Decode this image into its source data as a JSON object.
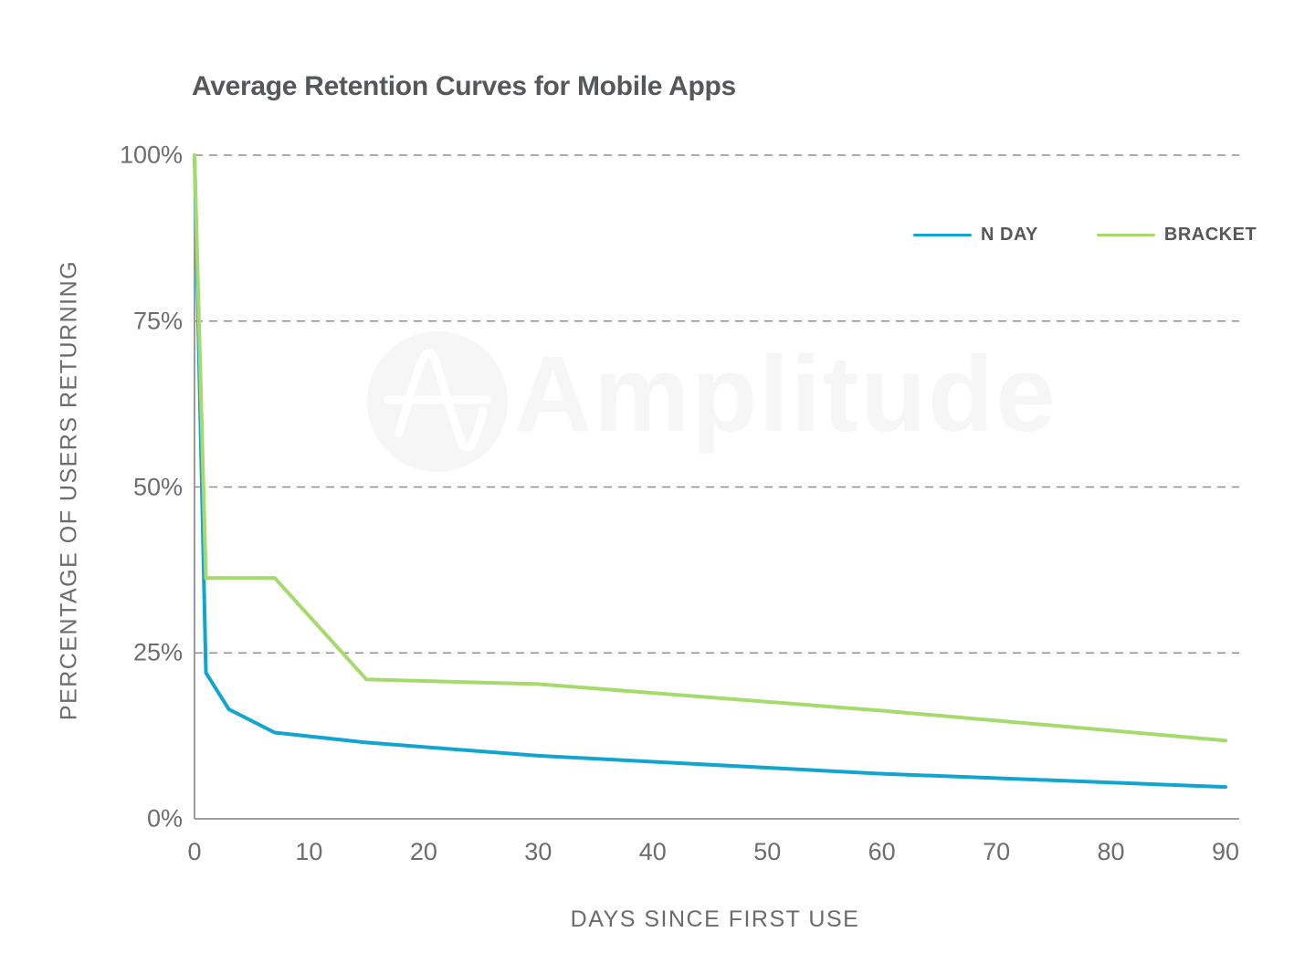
{
  "chart_data": {
    "type": "line",
    "title": "Average Retention Curves for Mobile Apps",
    "xlabel": "DAYS SINCE FIRST USE",
    "ylabel": "PERCENTAGE OF USERS RETURNING",
    "xlim": [
      0,
      90
    ],
    "ylim": [
      0,
      100
    ],
    "x_ticks": [
      0,
      10,
      20,
      30,
      40,
      50,
      60,
      70,
      80,
      90
    ],
    "y_ticks": [
      0,
      25,
      50,
      75,
      100
    ],
    "y_tick_labels": [
      "0%",
      "25%",
      "50%",
      "75%",
      "100%"
    ],
    "grid": "horizontal dashed gridlines at 25/50/75/100, solid bottom axis",
    "legend_position": "top-right inside plot",
    "series": [
      {
        "name": "N DAY",
        "color": "#12a5cf",
        "points": [
          [
            0,
            100
          ],
          [
            1,
            22
          ],
          [
            3,
            16.5
          ],
          [
            7,
            13
          ],
          [
            15,
            11.5
          ],
          [
            30,
            9.5
          ],
          [
            60,
            6.8
          ],
          [
            90,
            4.8
          ]
        ]
      },
      {
        "name": "BRACKET",
        "color": "#a6da6c",
        "points": [
          [
            0,
            100
          ],
          [
            1,
            36.3
          ],
          [
            7,
            36.3
          ],
          [
            15,
            21
          ],
          [
            30,
            20.3
          ],
          [
            60,
            16.3
          ],
          [
            90,
            11.8
          ]
        ]
      }
    ]
  },
  "watermark": {
    "text": "Amplitude",
    "logo": "amplitude-waveform-logo",
    "color": "#f6f6f6"
  },
  "style": {
    "title_color": "#55575a",
    "tick_color": "#6d6d6d",
    "axis_line_color": "#919191",
    "gridline_color": "#8f8f8f",
    "background": "#ffffff"
  }
}
